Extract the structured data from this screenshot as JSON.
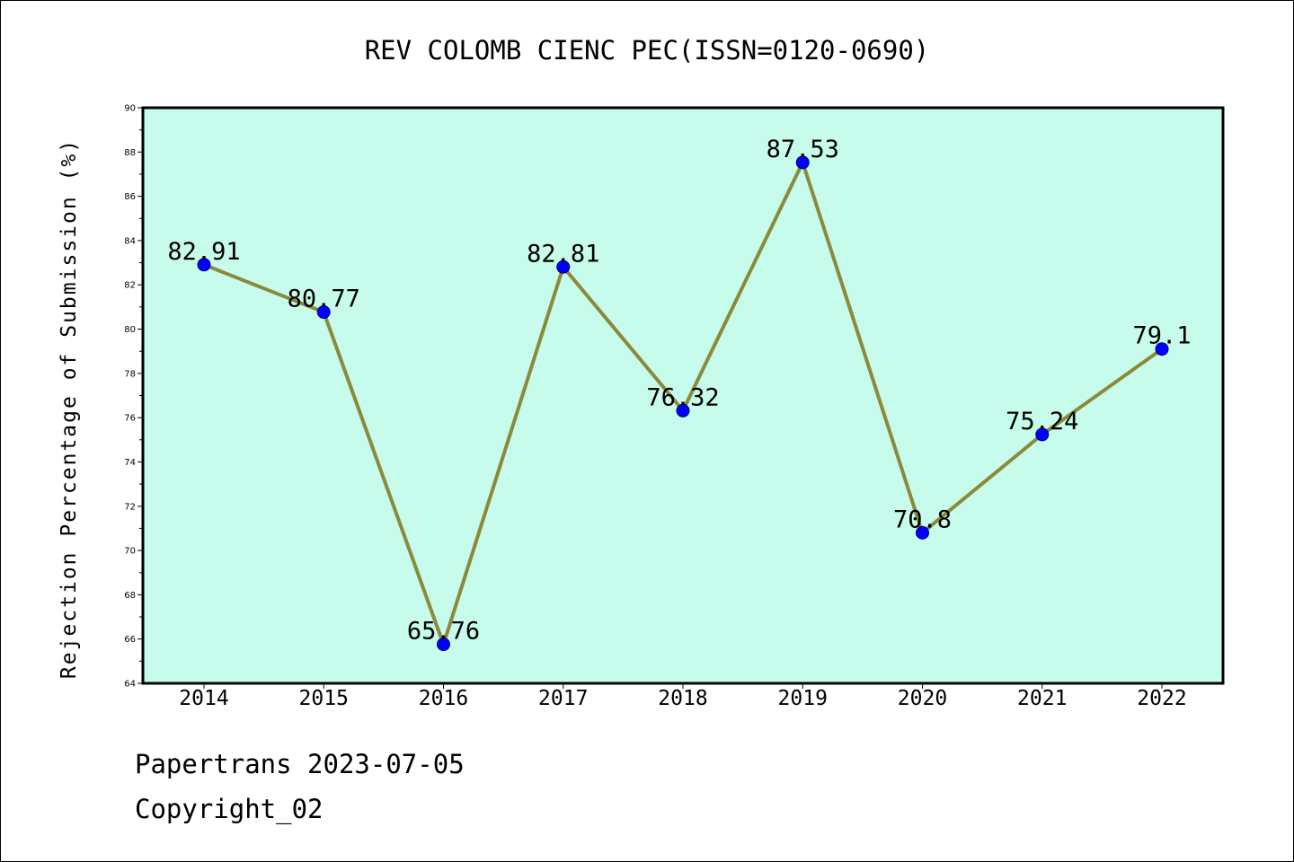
{
  "chart_data": {
    "type": "line",
    "title": "REV COLOMB CIENC PEC(ISSN=0120-0690)",
    "xlabel": "",
    "ylabel": "Rejection Percentage of Submission (%)",
    "categories": [
      "2014",
      "2015",
      "2016",
      "2017",
      "2018",
      "2019",
      "2020",
      "2021",
      "2022"
    ],
    "series": [
      {
        "values": [
          82.91,
          80.77,
          65.76,
          82.81,
          76.32,
          87.53,
          70.8,
          75.24,
          79.1
        ]
      }
    ],
    "data_labels": [
      "82.91",
      "80.77",
      "65.76",
      "82.81",
      "76.32",
      "87.53",
      "70.8",
      "75.24",
      "79.1"
    ],
    "ylim": [
      64,
      90
    ],
    "yticks": [
      "64",
      "66",
      "68",
      "70",
      "72",
      "74",
      "76",
      "78",
      "80",
      "82",
      "84",
      "86",
      "88",
      "90"
    ],
    "grid": false,
    "colors": {
      "plot_background": "#c7fcec",
      "line": "#8b8a3a",
      "marker": "#0000ff"
    }
  },
  "footer": {
    "line1": "Papertrans 2023-07-05",
    "line2": "Copyright_02"
  }
}
